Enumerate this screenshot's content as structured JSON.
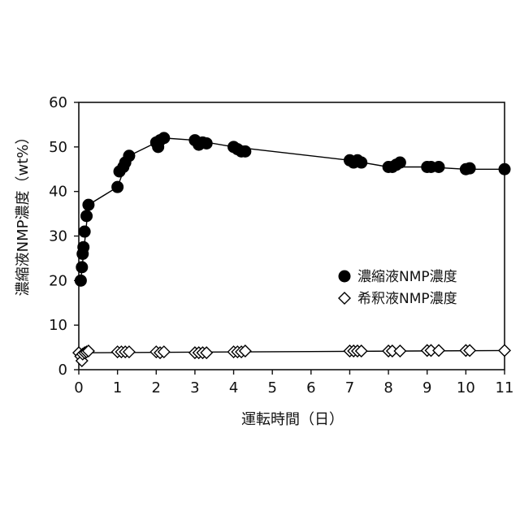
{
  "chart_data": {
    "type": "scatter",
    "xlabel": "運転時間（日）",
    "ylabel": "濃縮液NMP濃度（wt%）",
    "xlim": [
      0,
      11
    ],
    "ylim": [
      0,
      60
    ],
    "xticks": [
      "0",
      "1",
      "2",
      "3",
      "4",
      "5",
      "6",
      "7",
      "8",
      "9",
      "10",
      "11"
    ],
    "yticks": [
      "0",
      "10",
      "20",
      "30",
      "40",
      "50",
      "60"
    ],
    "grid": false,
    "legend_position": "right",
    "series": [
      {
        "name": "濃縮液NMP濃度",
        "marker": "filled-circle",
        "color": "#000000",
        "points": [
          [
            0.05,
            20.0
          ],
          [
            0.08,
            23.0
          ],
          [
            0.1,
            26.0
          ],
          [
            0.12,
            27.5
          ],
          [
            0.15,
            31.0
          ],
          [
            0.2,
            34.5
          ],
          [
            0.25,
            37.0
          ],
          [
            1.0,
            41.0
          ],
          [
            1.05,
            44.5
          ],
          [
            1.15,
            45.5
          ],
          [
            1.2,
            46.5
          ],
          [
            1.3,
            48.0
          ],
          [
            2.0,
            51.0
          ],
          [
            2.05,
            50.0
          ],
          [
            2.1,
            51.5
          ],
          [
            2.2,
            52.0
          ],
          [
            3.0,
            51.5
          ],
          [
            3.1,
            50.5
          ],
          [
            3.2,
            51.0
          ],
          [
            3.3,
            50.8
          ],
          [
            4.0,
            50.0
          ],
          [
            4.1,
            49.5
          ],
          [
            4.2,
            49.0
          ],
          [
            4.3,
            49.0
          ],
          [
            7.0,
            47.0
          ],
          [
            7.1,
            46.5
          ],
          [
            7.2,
            47.0
          ],
          [
            7.3,
            46.5
          ],
          [
            8.0,
            45.5
          ],
          [
            8.1,
            45.5
          ],
          [
            8.2,
            46.0
          ],
          [
            8.3,
            46.5
          ],
          [
            9.0,
            45.5
          ],
          [
            9.1,
            45.5
          ],
          [
            9.3,
            45.5
          ],
          [
            10.0,
            45.0
          ],
          [
            10.1,
            45.2
          ],
          [
            11.0,
            45.0
          ]
        ],
        "trend": [
          [
            0.05,
            20.0
          ],
          [
            0.25,
            37.0
          ],
          [
            1.0,
            41.0
          ],
          [
            1.3,
            48.0
          ],
          [
            2.0,
            51.0
          ],
          [
            2.2,
            52.0
          ],
          [
            3.0,
            51.5
          ],
          [
            4.0,
            50.0
          ],
          [
            7.0,
            47.0
          ],
          [
            8.0,
            45.5
          ],
          [
            9.0,
            45.5
          ],
          [
            10.0,
            45.0
          ],
          [
            11.0,
            45.0
          ]
        ]
      },
      {
        "name": "希釈液NMP濃度",
        "marker": "open-diamond",
        "color": "#000000",
        "points": [
          [
            0.0,
            3.8
          ],
          [
            0.05,
            3.0
          ],
          [
            0.08,
            2.0
          ],
          [
            0.1,
            3.5
          ],
          [
            0.15,
            3.8
          ],
          [
            0.2,
            4.0
          ],
          [
            0.25,
            4.2
          ],
          [
            1.0,
            4.0
          ],
          [
            1.1,
            4.0
          ],
          [
            1.2,
            4.0
          ],
          [
            1.3,
            4.0
          ],
          [
            2.0,
            4.0
          ],
          [
            2.1,
            3.8
          ],
          [
            2.2,
            4.0
          ],
          [
            3.0,
            3.8
          ],
          [
            3.1,
            3.8
          ],
          [
            3.2,
            3.8
          ],
          [
            3.3,
            3.8
          ],
          [
            4.0,
            4.0
          ],
          [
            4.1,
            4.0
          ],
          [
            4.2,
            4.0
          ],
          [
            4.3,
            4.2
          ],
          [
            7.0,
            4.2
          ],
          [
            7.1,
            4.2
          ],
          [
            7.2,
            4.2
          ],
          [
            7.3,
            4.2
          ],
          [
            8.0,
            4.2
          ],
          [
            8.1,
            4.2
          ],
          [
            8.3,
            4.2
          ],
          [
            9.0,
            4.3
          ],
          [
            9.1,
            4.3
          ],
          [
            9.3,
            4.3
          ],
          [
            10.0,
            4.3
          ],
          [
            10.1,
            4.3
          ],
          [
            11.0,
            4.3
          ]
        ],
        "trend": [
          [
            0.0,
            3.8
          ],
          [
            11.0,
            4.3
          ]
        ]
      }
    ]
  }
}
